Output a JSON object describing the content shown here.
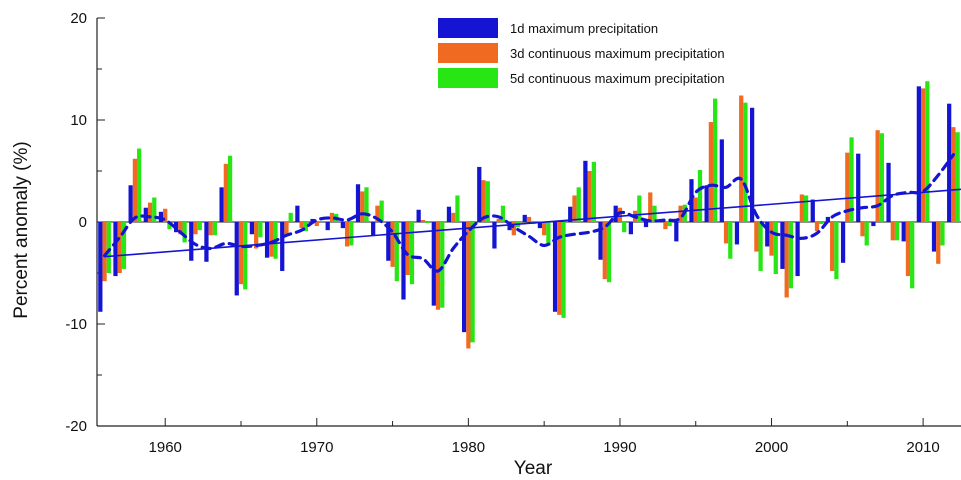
{
  "chart_data": {
    "type": "bar",
    "title": "",
    "xlabel": "Year",
    "ylabel": "Percent anomaly (%)",
    "xlim": [
      1955.5,
      2012.5
    ],
    "ylim": [
      -20,
      20
    ],
    "x_ticks": [
      1960,
      1970,
      1980,
      1990,
      2000,
      2010
    ],
    "y_ticks": [
      -20,
      -10,
      0,
      10,
      20
    ],
    "grid": false,
    "legend_position": "top-center",
    "years": [
      1956,
      1957,
      1958,
      1959,
      1960,
      1961,
      1962,
      1963,
      1964,
      1965,
      1966,
      1967,
      1968,
      1969,
      1970,
      1971,
      1972,
      1973,
      1974,
      1975,
      1976,
      1977,
      1978,
      1979,
      1980,
      1981,
      1982,
      1983,
      1984,
      1985,
      1986,
      1987,
      1988,
      1989,
      1990,
      1991,
      1992,
      1993,
      1994,
      1995,
      1996,
      1997,
      1998,
      1999,
      2000,
      2001,
      2002,
      2003,
      2004,
      2005,
      2006,
      2007,
      2008,
      2009,
      2010,
      2011,
      2012
    ],
    "series": [
      {
        "name": "1d maximum precipitation",
        "color": "#1414d2",
        "values": [
          -8.8,
          -5.3,
          3.6,
          1.4,
          1.0,
          -1.0,
          -3.8,
          -3.9,
          3.4,
          -7.2,
          -1.2,
          -3.5,
          -4.8,
          1.6,
          0.3,
          -0.8,
          -0.6,
          3.7,
          -1.3,
          -3.8,
          -7.6,
          1.2,
          -8.2,
          1.5,
          -10.8,
          5.4,
          -2.6,
          -0.8,
          0.7,
          -0.6,
          -8.8,
          1.5,
          6.0,
          -3.7,
          1.6,
          -1.2,
          -0.5,
          0.3,
          -1.9,
          4.2,
          3.6,
          8.1,
          -2.2,
          11.2,
          -2.4,
          -4.6,
          -5.3,
          2.2,
          0.5,
          -4.0,
          6.7,
          -0.4,
          5.8,
          -1.9,
          13.3,
          -2.9,
          11.6
        ]
      },
      {
        "name": "3d continuous maximum precipitation",
        "color": "#f06a22",
        "values": [
          -5.8,
          -5.0,
          6.2,
          1.9,
          1.3,
          -1.2,
          -1.2,
          -1.3,
          5.7,
          -6.1,
          -2.6,
          -3.4,
          -1.3,
          -0.6,
          -0.4,
          0.9,
          -2.4,
          3.0,
          1.6,
          -4.4,
          -5.2,
          0.2,
          -8.6,
          0.9,
          -12.4,
          4.1,
          0.3,
          -1.3,
          0.5,
          -1.3,
          -9.1,
          2.6,
          5.0,
          -5.6,
          1.4,
          1.1,
          2.9,
          -0.7,
          1.6,
          2.4,
          9.8,
          -2.1,
          12.4,
          -2.9,
          -3.3,
          -7.4,
          2.7,
          -0.9,
          -4.8,
          6.8,
          -1.4,
          9.0,
          -1.8,
          -5.3,
          13.1,
          -4.1,
          9.3
        ]
      },
      {
        "name": "5d continuous maximum precipitation",
        "color": "#28e614",
        "values": [
          -5.0,
          -4.6,
          7.2,
          2.4,
          -0.7,
          -2.0,
          -0.8,
          -1.3,
          6.5,
          -6.6,
          -1.5,
          -3.6,
          0.9,
          -0.9,
          0.1,
          0.8,
          -2.3,
          3.4,
          2.1,
          -5.8,
          -6.1,
          -0.1,
          -8.4,
          2.6,
          -11.8,
          4.0,
          1.6,
          -0.5,
          -0.2,
          -2.3,
          -9.4,
          3.4,
          5.9,
          -5.9,
          -1.0,
          2.6,
          1.6,
          -0.4,
          1.7,
          5.1,
          12.1,
          -3.6,
          11.7,
          -4.8,
          -5.1,
          -6.5,
          2.6,
          -0.2,
          -5.6,
          8.3,
          -2.3,
          8.7,
          -1.8,
          -6.5,
          13.8,
          -2.3,
          8.8
        ]
      }
    ],
    "trend_line": {
      "color": "#1414d2",
      "x": [
        1956,
        2012.5
      ],
      "y": [
        -3.4,
        3.2
      ]
    },
    "smoothed_line": {
      "color": "#1414d2",
      "x": [
        1956,
        1957,
        1958,
        1959,
        1960,
        1961,
        1962,
        1963,
        1964,
        1965,
        1966,
        1967,
        1968,
        1969,
        1970,
        1971,
        1972,
        1973,
        1974,
        1975,
        1976,
        1977,
        1978,
        1979,
        1980,
        1981,
        1982,
        1983,
        1984,
        1985,
        1986,
        1987,
        1988,
        1989,
        1990,
        1991,
        1992,
        1993,
        1994,
        1995,
        1996,
        1997,
        1998,
        1999,
        2000,
        2001,
        2002,
        2003,
        2004,
        2005,
        2006,
        2007,
        2008,
        2009,
        2010,
        2011,
        2012
      ],
      "y": [
        -3.3,
        -1.5,
        0.4,
        0.5,
        0.2,
        -1.0,
        -2.2,
        -2.6,
        -2.1,
        -2.4,
        -2.3,
        -2.0,
        -1.3,
        -0.8,
        0.2,
        0.4,
        0.2,
        0.8,
        0.3,
        -1.0,
        -3.2,
        -3.6,
        -4.8,
        -2.6,
        -0.9,
        0.4,
        0.5,
        -0.5,
        -1.4,
        -2.3,
        -1.5,
        -1.2,
        -1.0,
        -0.5,
        0.9,
        0.5,
        0.1,
        0.2,
        0.4,
        2.9,
        3.6,
        3.4,
        4.2,
        0.7,
        -1.0,
        -1.3,
        -1.6,
        -1.1,
        0.5,
        1.1,
        1.4,
        1.6,
        2.6,
        2.9,
        3.0,
        4.6,
        6.6
      ]
    }
  }
}
